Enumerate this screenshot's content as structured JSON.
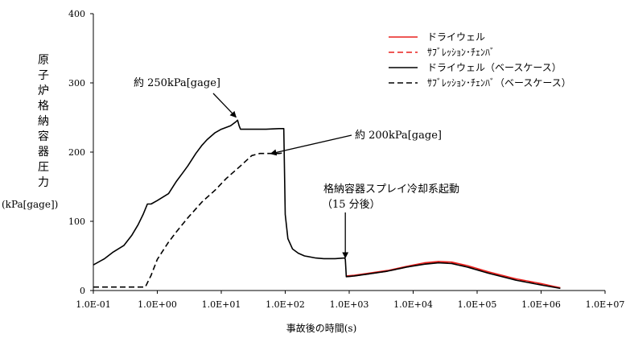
{
  "chart_data": {
    "type": "line",
    "title": "",
    "xlabel": "事故後の時間(s)",
    "ylabel": "原子炉格納容器圧力",
    "ylabel_unit": "(kPa[gage])",
    "x_scale": "log",
    "xlim": [
      0.1,
      10000000
    ],
    "ylim": [
      0,
      400
    ],
    "x_ticks": [
      "1.0E-01",
      "1.0E+00",
      "1.0E+01",
      "1.0E+02",
      "1.0E+03",
      "1.0E+04",
      "1.0E+05",
      "1.0E+06",
      "1.0E+07"
    ],
    "y_ticks": [
      "0",
      "100",
      "200",
      "300",
      "400"
    ],
    "grid": false,
    "legend_position": "top-right",
    "series": [
      {
        "name": "ドライウェル",
        "color": "#e8201d",
        "dash": "solid",
        "x": [
          900,
          1200,
          2000,
          4000,
          8000,
          15000,
          25000,
          40000,
          70000,
          150000,
          400000,
          1000000,
          2000000
        ],
        "y": [
          21,
          22,
          25,
          29,
          35,
          40,
          42,
          41,
          36,
          27,
          17,
          10,
          4
        ]
      },
      {
        "name": "ｻﾌﾞﾚｯｼｮﾝ･ﾁｪﾝﾊﾞ",
        "color": "#e8201d",
        "dash": "dashed",
        "x": [
          900,
          1200,
          2000,
          4000,
          8000,
          15000,
          25000,
          40000,
          70000,
          150000,
          400000,
          1000000,
          2000000
        ],
        "y": [
          20,
          21,
          24,
          28,
          34,
          39,
          41,
          40,
          35,
          26,
          16,
          9,
          4
        ]
      },
      {
        "name": "ドライウェル（ベースケース）",
        "color": "#000000",
        "dash": "solid",
        "x": [
          0.1,
          0.15,
          0.2,
          0.3,
          0.4,
          0.5,
          0.6,
          0.7,
          0.8,
          1.0,
          1.5,
          2.0,
          2.5,
          3.0,
          4.0,
          5.0,
          6.0,
          8.0,
          10,
          14,
          17,
          18,
          19,
          20,
          30,
          50,
          80,
          95,
          100,
          110,
          130,
          160,
          200,
          300,
          400,
          600,
          850,
          870,
          900,
          1200,
          2000,
          4000,
          8000,
          15000,
          25000,
          40000,
          70000,
          150000,
          400000,
          1000000,
          2000000
        ],
        "y": [
          37,
          46,
          55,
          65,
          80,
          95,
          110,
          125,
          125,
          130,
          140,
          158,
          170,
          180,
          198,
          210,
          218,
          228,
          233,
          238,
          244,
          246,
          238,
          233,
          233,
          233,
          234,
          234,
          110,
          75,
          60,
          54,
          50,
          47,
          46,
          46,
          47,
          45,
          20,
          21,
          24,
          28,
          34,
          38,
          40,
          39,
          34,
          25,
          15,
          8,
          3
        ]
      },
      {
        "name": "ｻﾌﾞﾚｯｼｮﾝ･ﾁｪﾝﾊﾞ（ベースケース）",
        "color": "#000000",
        "dash": "dashed",
        "x": [
          0.1,
          0.2,
          0.5,
          0.65,
          0.8,
          1.0,
          1.5,
          2.0,
          3.0,
          5.0,
          8.0,
          12,
          20,
          30,
          40,
          50,
          60,
          80,
          95
        ],
        "y": [
          5,
          5,
          5,
          5,
          22,
          45,
          70,
          85,
          105,
          128,
          145,
          162,
          180,
          195,
          198,
          198,
          198,
          198,
          199
        ]
      }
    ],
    "annotations": [
      {
        "text": "約 250kPa[gage]",
        "arrow_to": [
          18,
          247
        ]
      },
      {
        "text": "約 200kPa[gage]",
        "arrow_to": [
          50,
          200
        ]
      },
      {
        "text": "格納容器スプレイ冷却系起動",
        "arrow_to": [
          870,
          45
        ]
      },
      {
        "text": "（15 分後）"
      }
    ]
  }
}
